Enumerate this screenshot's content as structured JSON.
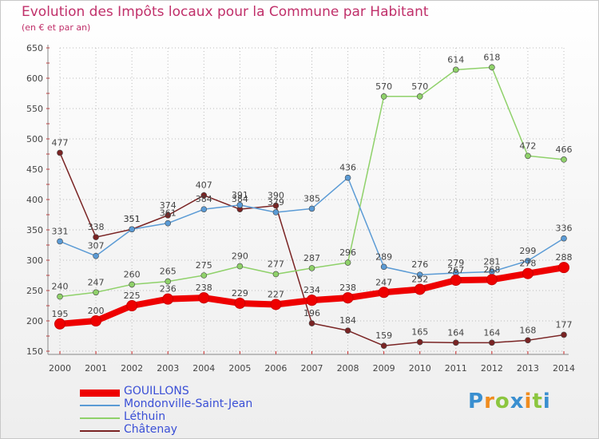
{
  "chart_data": {
    "type": "line",
    "title": "Evolution des Impôts locaux pour la Commune par Habitant",
    "subtitle": "(en € et par an)",
    "xlabel": "",
    "ylabel": "",
    "ylim": [
      150,
      650
    ],
    "yticks": [
      150,
      200,
      250,
      300,
      350,
      400,
      450,
      500,
      550,
      600,
      650
    ],
    "grid": true,
    "legend_position": "bottom-left",
    "x": [
      "2000",
      "2001",
      "2002",
      "2003",
      "2004",
      "2005",
      "2006",
      "2007",
      "2008",
      "2009",
      "2010",
      "2011",
      "2012",
      "2013",
      "2014"
    ],
    "series": [
      {
        "name": "GOUILLONS",
        "color": "#ee0000",
        "values": [
          195,
          200,
          225,
          236,
          238,
          229,
          227,
          234,
          238,
          247,
          252,
          267,
          268,
          278,
          288
        ],
        "labels": [
          "195",
          "200",
          "225",
          "236",
          "238",
          "229",
          "227",
          "234",
          "238",
          "247",
          "252",
          "267",
          "268",
          "278",
          "288"
        ]
      },
      {
        "name": "Mondonville-Saint-Jean",
        "color": "#5b9bd5",
        "values": [
          331,
          307,
          351,
          361,
          384,
          391,
          379,
          385,
          436,
          289,
          276,
          279,
          281,
          299,
          336
        ],
        "labels": [
          "331",
          "307",
          "351",
          "361",
          "384",
          "391",
          "379",
          "385",
          "436",
          "289",
          "276",
          "279",
          "281",
          "299",
          "336"
        ]
      },
      {
        "name": "Léthuin",
        "color": "#8fd16a",
        "values": [
          240,
          247,
          260,
          265,
          275,
          290,
          277,
          287,
          296,
          570,
          570,
          614,
          618,
          472,
          466
        ],
        "labels": [
          "240",
          "247",
          "260",
          "265",
          "275",
          "290",
          "277",
          "287",
          "296",
          "570",
          "570",
          "614",
          "618",
          "472",
          "466"
        ]
      },
      {
        "name": "Châtenay",
        "color": "#7a2424",
        "values": [
          477,
          338,
          351,
          374,
          407,
          384,
          390,
          196,
          184,
          159,
          165,
          164,
          164,
          168,
          177
        ],
        "labels": [
          "477",
          "338",
          "351",
          "374",
          "407",
          "384",
          "390",
          "196",
          "184",
          "159",
          "165",
          "164",
          "164",
          "168",
          "177"
        ]
      }
    ]
  },
  "logo": {
    "letters": [
      "P",
      "r",
      "o",
      "x",
      "i",
      "t",
      "i"
    ],
    "colors": [
      "#3a8fd0",
      "#f08c1e",
      "#8cc63f",
      "#3a8fd0",
      "#f08c1e",
      "#8cc63f",
      "#3a8fd0"
    ]
  }
}
